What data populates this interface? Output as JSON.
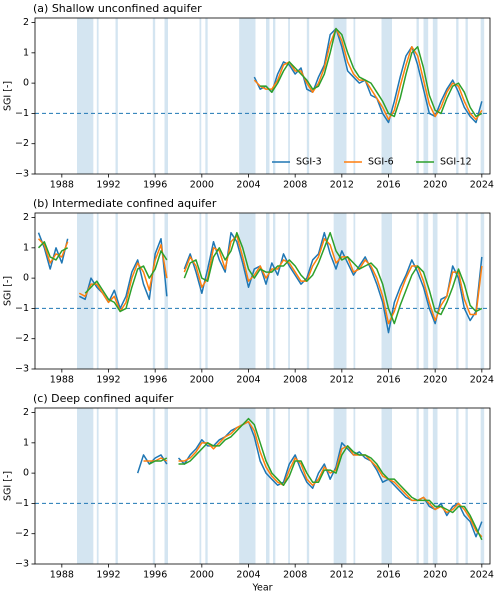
{
  "chart_data": [
    {
      "type": "line",
      "title": "(a) Shallow unconfined aquifer",
      "ylabel": "SGI [-]",
      "xlim": [
        1985.7,
        2024.7
      ],
      "ylim": [
        -3,
        2.15
      ],
      "xticks": [
        1988,
        1992,
        1996,
        2000,
        2004,
        2008,
        2012,
        2016,
        2020,
        2024
      ],
      "yticks": [
        {
          "value": -3,
          "label": "−3"
        },
        {
          "value": -2,
          "label": "−2"
        },
        {
          "value": -1,
          "label": "−1"
        },
        0,
        1,
        2
      ],
      "hline": -1,
      "legend": "lower right",
      "shade_color": "#c6dcec",
      "shaded_periods": [
        [
          1989.3,
          1990.7
        ],
        [
          1991.0,
          1991.15
        ],
        [
          1992.6,
          1992.8
        ],
        [
          1995.8,
          1996.0
        ],
        [
          1996.8,
          1997.1
        ],
        [
          1999.8,
          1999.95
        ],
        [
          2000.3,
          2000.5
        ],
        [
          2003.2,
          2004.6
        ],
        [
          2005.5,
          2005.8
        ],
        [
          2006.1,
          2006.3
        ],
        [
          2007.4,
          2007.55
        ],
        [
          2009.0,
          2009.2
        ],
        [
          2011.3,
          2012.4
        ],
        [
          2013.0,
          2013.15
        ],
        [
          2015.4,
          2016.3
        ],
        [
          2018.4,
          2018.6
        ],
        [
          2019.0,
          2019.4
        ],
        [
          2019.8,
          2020.2
        ],
        [
          2021.8,
          2022.0
        ],
        [
          2022.6,
          2022.8
        ],
        [
          2023.9,
          2024.2
        ]
      ],
      "x": [
        2004.5,
        2005,
        2005.5,
        2006,
        2006.5,
        2007,
        2007.5,
        2008,
        2008.5,
        2009,
        2009.5,
        2010,
        2010.5,
        2011,
        2011.5,
        2012,
        2012.5,
        2013,
        2013.5,
        2014,
        2014.5,
        2015,
        2015.5,
        2016,
        2016.5,
        2017,
        2017.5,
        2018,
        2018.5,
        2019,
        2019.5,
        2020,
        2020.5,
        2021,
        2021.5,
        2022,
        2022.5,
        2023,
        2023.5,
        2024
      ],
      "series": [
        {
          "name": "SGI-3",
          "color": "#1f77b4",
          "values": [
            0.2,
            -0.2,
            -0.1,
            -0.3,
            0.3,
            0.7,
            0.6,
            0.3,
            0.5,
            -0.2,
            -0.3,
            0.2,
            0.6,
            1.6,
            1.8,
            1.2,
            0.4,
            0.2,
            0.0,
            0.1,
            -0.4,
            -0.5,
            -1.0,
            -1.3,
            -0.6,
            0.2,
            0.9,
            1.2,
            0.6,
            -0.2,
            -1.0,
            -1.1,
            -0.6,
            -0.2,
            0.1,
            -0.3,
            -0.8,
            -1.1,
            -1.3,
            -0.6
          ]
        },
        {
          "name": "SGI-6",
          "color": "#ff7f0e",
          "values": [
            0.1,
            -0.1,
            -0.2,
            -0.2,
            0.1,
            0.6,
            0.7,
            0.4,
            0.4,
            0.0,
            -0.3,
            0.0,
            0.5,
            1.3,
            1.8,
            1.4,
            0.7,
            0.3,
            0.1,
            0.1,
            -0.2,
            -0.5,
            -0.8,
            -1.2,
            -0.9,
            -0.1,
            0.6,
            1.2,
            0.9,
            0.1,
            -0.7,
            -1.1,
            -0.8,
            -0.3,
            0.0,
            -0.1,
            -0.6,
            -1.0,
            -1.2,
            -0.9
          ]
        },
        {
          "name": "SGI-12",
          "color": "#2ca02c",
          "values": [
            null,
            -0.1,
            -0.1,
            -0.3,
            0.0,
            0.4,
            0.7,
            0.5,
            0.3,
            0.1,
            -0.2,
            -0.1,
            0.3,
            1.0,
            1.8,
            1.6,
            1.0,
            0.5,
            0.2,
            0.1,
            0.0,
            -0.3,
            -0.6,
            -1.0,
            -1.1,
            -0.5,
            0.3,
            1.0,
            1.2,
            0.5,
            -0.4,
            -0.9,
            -1.0,
            -0.5,
            -0.1,
            0.0,
            -0.3,
            -0.8,
            -1.1,
            -1.0
          ]
        }
      ]
    },
    {
      "type": "line",
      "title": "(b) Intermediate confined aquifer",
      "ylabel": "SGI [-]",
      "xlim": [
        1985.7,
        2024.7
      ],
      "ylim": [
        -3,
        2.15
      ],
      "xticks": [
        1988,
        1992,
        1996,
        2000,
        2004,
        2008,
        2012,
        2016,
        2020,
        2024
      ],
      "yticks": [
        {
          "value": -3,
          "label": "−3"
        },
        {
          "value": -2,
          "label": "−2"
        },
        {
          "value": -1,
          "label": "−1"
        },
        0,
        1,
        2
      ],
      "hline": -1,
      "shade_color": "#c6dcec",
      "shaded_periods": [
        [
          1989.3,
          1990.7
        ],
        [
          1991.0,
          1991.15
        ],
        [
          1992.6,
          1992.8
        ],
        [
          1995.8,
          1996.0
        ],
        [
          1996.8,
          1997.1
        ],
        [
          1999.8,
          1999.95
        ],
        [
          2000.3,
          2000.5
        ],
        [
          2003.2,
          2004.6
        ],
        [
          2005.5,
          2005.8
        ],
        [
          2006.1,
          2006.3
        ],
        [
          2007.4,
          2007.55
        ],
        [
          2009.0,
          2009.2
        ],
        [
          2011.3,
          2012.4
        ],
        [
          2013.0,
          2013.15
        ],
        [
          2015.4,
          2016.3
        ],
        [
          2018.4,
          2018.6
        ],
        [
          2019.0,
          2019.4
        ],
        [
          2019.8,
          2020.2
        ],
        [
          2021.8,
          2022.0
        ],
        [
          2022.6,
          2022.8
        ],
        [
          2023.9,
          2024.2
        ]
      ],
      "x": [
        1986,
        1986.5,
        1987,
        1987.5,
        1988,
        1988.5,
        1989,
        1989.5,
        1990,
        1990.5,
        1991,
        1991.5,
        1992,
        1992.5,
        1993,
        1993.5,
        1994,
        1994.5,
        1995,
        1995.5,
        1996,
        1996.5,
        1997,
        1997.5,
        1998,
        1998.5,
        1999,
        1999.5,
        2000,
        2000.5,
        2001,
        2001.5,
        2002,
        2002.5,
        2003,
        2003.5,
        2004,
        2004.5,
        2005,
        2005.5,
        2006,
        2006.5,
        2007,
        2007.5,
        2008,
        2008.5,
        2009,
        2009.5,
        2010,
        2010.5,
        2011,
        2011.5,
        2012,
        2012.5,
        2013,
        2013.5,
        2014,
        2014.5,
        2015,
        2015.5,
        2016,
        2016.5,
        2017,
        2017.5,
        2018,
        2018.5,
        2019,
        2019.5,
        2020,
        2020.5,
        2021,
        2021.5,
        2022,
        2022.5,
        2023,
        2023.5,
        2024
      ],
      "series": [
        {
          "color": "#1f77b4",
          "values": [
            1.5,
            1.0,
            0.3,
            1.0,
            0.5,
            1.3,
            null,
            -0.6,
            -0.7,
            0.0,
            -0.3,
            -0.5,
            -0.8,
            -0.4,
            -1.0,
            -0.6,
            0.2,
            0.6,
            -0.2,
            -0.7,
            0.8,
            1.3,
            -0.6,
            null,
            null,
            0.3,
            0.8,
            0.2,
            -0.5,
            0.3,
            1.2,
            0.6,
            0.2,
            1.5,
            1.2,
            0.5,
            -0.3,
            0.3,
            0.4,
            -0.2,
            0.5,
            0.1,
            0.8,
            0.4,
            0.1,
            -0.2,
            0.0,
            0.6,
            0.8,
            1.5,
            0.8,
            0.3,
            0.9,
            0.5,
            0.1,
            0.4,
            0.7,
            0.3,
            -0.2,
            -0.8,
            -1.8,
            -0.8,
            -0.3,
            0.1,
            0.6,
            0.2,
            -0.3,
            -1.0,
            -1.5,
            -0.7,
            -0.6,
            0.4,
            0.0,
            -1.0,
            -1.4,
            -1.1,
            0.7
          ]
        },
        {
          "color": "#ff7f0e",
          "values": [
            1.3,
            1.1,
            0.5,
            0.8,
            0.7,
            1.2,
            null,
            -0.5,
            -0.6,
            -0.2,
            -0.2,
            -0.5,
            -0.8,
            -0.6,
            -1.1,
            -0.8,
            0.0,
            0.5,
            0.2,
            -0.4,
            0.6,
            1.1,
            0.0,
            null,
            null,
            0.2,
            0.7,
            0.4,
            -0.3,
            0.0,
            1.0,
            0.9,
            0.3,
            1.2,
            1.4,
            0.7,
            -0.1,
            0.1,
            0.4,
            0.0,
            0.3,
            0.3,
            0.6,
            0.5,
            0.2,
            -0.1,
            -0.1,
            0.4,
            0.7,
            1.3,
            1.1,
            0.5,
            0.7,
            0.7,
            0.2,
            0.3,
            0.6,
            0.4,
            0.0,
            -0.6,
            -1.5,
            -1.1,
            -0.5,
            0.0,
            0.4,
            0.4,
            -0.1,
            -0.8,
            -1.4,
            -0.9,
            -0.6,
            0.2,
            0.2,
            -0.7,
            -1.2,
            -1.2,
            0.4
          ]
        },
        {
          "color": "#2ca02c",
          "values": [
            1.0,
            1.2,
            0.7,
            0.6,
            0.9,
            1.0,
            null,
            null,
            -0.5,
            -0.3,
            -0.1,
            -0.4,
            -0.7,
            -0.8,
            -1.1,
            -1.0,
            -0.3,
            0.3,
            0.4,
            0.0,
            0.3,
            0.9,
            0.6,
            null,
            null,
            0.0,
            0.5,
            0.6,
            0.0,
            -0.1,
            0.7,
            1.0,
            0.6,
            0.9,
            1.5,
            1.0,
            0.3,
            0.0,
            0.3,
            0.2,
            0.2,
            0.4,
            0.4,
            0.6,
            0.4,
            0.1,
            -0.1,
            0.1,
            0.5,
            1.0,
            1.5,
            0.9,
            0.6,
            0.7,
            0.5,
            0.3,
            0.4,
            0.5,
            0.3,
            -0.2,
            -1.0,
            -1.5,
            -0.9,
            -0.4,
            0.1,
            0.4,
            0.2,
            -0.4,
            -1.1,
            -1.2,
            -0.8,
            -0.3,
            0.3,
            -0.2,
            -0.9,
            -1.1,
            -1.0
          ]
        }
      ]
    },
    {
      "type": "line",
      "title": "(c) Deep confined aquifer",
      "ylabel": "SGI [-]",
      "xlabel": "Year",
      "xlim": [
        1985.7,
        2024.7
      ],
      "ylim": [
        -3,
        2.15
      ],
      "xticks": [
        1988,
        1992,
        1996,
        2000,
        2004,
        2008,
        2012,
        2016,
        2020,
        2024
      ],
      "yticks": [
        {
          "value": -3,
          "label": "−3"
        },
        {
          "value": -2,
          "label": "−2"
        },
        {
          "value": -1,
          "label": "−1"
        },
        0,
        1,
        2
      ],
      "hline": -1,
      "shade_color": "#c6dcec",
      "shaded_periods": [
        [
          1989.3,
          1990.7
        ],
        [
          1991.0,
          1991.15
        ],
        [
          1992.6,
          1992.8
        ],
        [
          1995.8,
          1996.0
        ],
        [
          1996.8,
          1997.1
        ],
        [
          1999.8,
          1999.95
        ],
        [
          2000.3,
          2000.5
        ],
        [
          2003.2,
          2004.6
        ],
        [
          2005.5,
          2005.8
        ],
        [
          2006.1,
          2006.3
        ],
        [
          2007.4,
          2007.55
        ],
        [
          2009.0,
          2009.2
        ],
        [
          2011.3,
          2012.4
        ],
        [
          2013.0,
          2013.15
        ],
        [
          2015.4,
          2016.3
        ],
        [
          2018.4,
          2018.6
        ],
        [
          2019.0,
          2019.4
        ],
        [
          2019.8,
          2020.2
        ],
        [
          2021.8,
          2022.0
        ],
        [
          2022.6,
          2022.8
        ],
        [
          2023.9,
          2024.2
        ]
      ],
      "x": [
        1994.5,
        1995,
        1995.5,
        1996,
        1996.5,
        1997,
        1997.5,
        1998,
        1998.5,
        1999,
        1999.5,
        2000,
        2000.5,
        2001,
        2001.5,
        2002,
        2002.5,
        2003,
        2003.5,
        2004,
        2004.5,
        2005,
        2005.5,
        2006,
        2006.5,
        2007,
        2007.5,
        2008,
        2008.5,
        2009,
        2009.5,
        2010,
        2010.5,
        2011,
        2011.5,
        2012,
        2012.5,
        2013,
        2013.5,
        2014,
        2014.5,
        2015,
        2015.5,
        2016,
        2016.5,
        2017,
        2017.5,
        2018,
        2018.5,
        2019,
        2019.5,
        2020,
        2020.5,
        2021,
        2021.5,
        2022,
        2022.5,
        2023,
        2023.5,
        2024
      ],
      "series": [
        {
          "color": "#1f77b4",
          "values": [
            0.0,
            0.6,
            0.3,
            0.5,
            0.6,
            0.3,
            null,
            0.5,
            0.3,
            0.6,
            0.8,
            1.1,
            0.9,
            0.9,
            1.1,
            1.2,
            1.4,
            1.5,
            1.6,
            1.7,
            1.2,
            0.4,
            0.0,
            -0.2,
            -0.4,
            -0.3,
            0.3,
            0.6,
            0.1,
            -0.3,
            -0.5,
            0.0,
            0.3,
            -0.2,
            0.2,
            1.0,
            0.8,
            0.6,
            0.7,
            0.5,
            0.4,
            0.1,
            -0.3,
            -0.2,
            -0.4,
            -0.6,
            -0.8,
            -0.9,
            -0.9,
            -0.8,
            -1.1,
            -1.2,
            -1.0,
            -1.4,
            -1.1,
            -1.0,
            -1.4,
            -1.6,
            -2.1,
            -1.6
          ]
        },
        {
          "color": "#ff7f0e",
          "values": [
            null,
            0.4,
            0.4,
            0.4,
            0.5,
            0.4,
            null,
            0.4,
            0.4,
            0.5,
            0.7,
            1.0,
            1.0,
            0.8,
            1.0,
            1.2,
            1.3,
            1.5,
            1.6,
            1.7,
            1.4,
            0.7,
            0.2,
            -0.1,
            -0.3,
            -0.4,
            0.1,
            0.5,
            0.3,
            -0.2,
            -0.4,
            -0.2,
            0.2,
            0.0,
            0.1,
            0.8,
            0.9,
            0.6,
            0.6,
            0.6,
            0.4,
            0.2,
            -0.1,
            -0.2,
            -0.3,
            -0.5,
            -0.7,
            -0.9,
            -0.9,
            -0.8,
            -1.0,
            -1.2,
            -1.1,
            -1.3,
            -1.2,
            -1.0,
            -1.2,
            -1.5,
            -1.9,
            -2.1
          ]
        },
        {
          "color": "#2ca02c",
          "values": [
            null,
            null,
            0.3,
            0.4,
            0.4,
            0.5,
            null,
            0.3,
            0.3,
            0.4,
            0.6,
            0.8,
            1.0,
            0.9,
            0.9,
            1.1,
            1.2,
            1.4,
            1.6,
            1.8,
            1.6,
            1.0,
            0.4,
            0.0,
            -0.2,
            -0.4,
            -0.1,
            0.4,
            0.4,
            0.0,
            -0.3,
            -0.3,
            0.1,
            0.1,
            0.0,
            0.6,
            0.9,
            0.7,
            0.6,
            0.6,
            0.5,
            0.3,
            0.0,
            -0.2,
            -0.2,
            -0.4,
            -0.6,
            -0.8,
            -0.9,
            -0.9,
            -0.9,
            -1.1,
            -1.1,
            -1.2,
            -1.3,
            -1.1,
            -1.1,
            -1.4,
            -1.8,
            -2.2
          ]
        }
      ]
    }
  ]
}
